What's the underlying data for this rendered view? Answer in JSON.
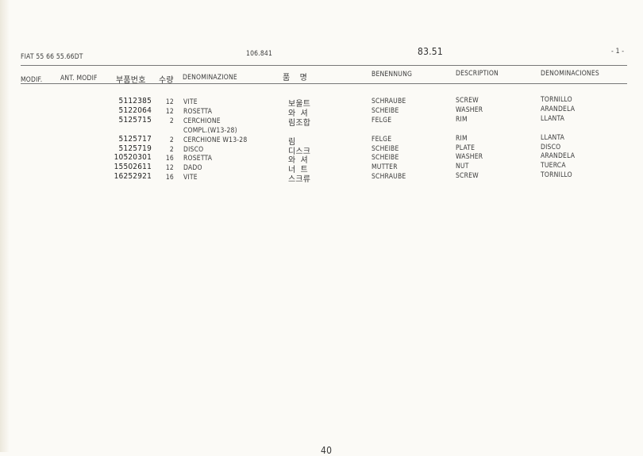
{
  "header": {
    "model": "FIAT 55 66 55.66DT",
    "ref": "106.841",
    "group": "83.51",
    "page": "- 1 -"
  },
  "columns": {
    "modif": "MODIF.",
    "ant_modif": "ANT. MODIF",
    "part_no": "부품번호",
    "qty": "수량",
    "denominazione": "DENOMINAZIONE",
    "korean": "품    명",
    "benennung": "BENENNUNG",
    "description": "DESCRIPTION",
    "denominaciones": "DENOMINACIONES"
  },
  "rows": [
    {
      "code": "5112385",
      "qty": "12",
      "it": "VITE",
      "ko": "보울트",
      "de": "SCHRAUBE",
      "en": "SCREW",
      "es": "TORNILLO"
    },
    {
      "code": "5122064",
      "qty": "12",
      "it": "ROSETTA",
      "ko": "와  셔",
      "de": "SCHEIBE",
      "en": "WASHER",
      "es": "ARANDELA"
    },
    {
      "code": "5125715",
      "qty": "2",
      "it": "CERCHIONE",
      "ko": "림조합",
      "de": "FELGE",
      "en": "RIM",
      "es": "LLANTA"
    },
    {
      "code": "",
      "qty": "",
      "it": "COMPL.(W13-28)",
      "ko": "",
      "de": "",
      "en": "",
      "es": ""
    },
    {
      "code": "5125717",
      "qty": "2",
      "it": "CERCHIONE W13-28",
      "ko": "림",
      "de": "FELGE",
      "en": "RIM",
      "es": "LLANTA"
    },
    {
      "code": "5125719",
      "qty": "2",
      "it": "DISCO",
      "ko": "디스크",
      "de": "SCHEIBE",
      "en": "PLATE",
      "es": "DISCO"
    },
    {
      "code": "10520301",
      "qty": "16",
      "it": "ROSETTA",
      "ko": "와  셔",
      "de": "SCHEIBE",
      "en": "WASHER",
      "es": "ARANDELA"
    },
    {
      "code": "15502611",
      "qty": "12",
      "it": "DADO",
      "ko": "너  트",
      "de": "MUTTER",
      "en": "NUT",
      "es": "TUERCA"
    },
    {
      "code": "16252921",
      "qty": "16",
      "it": "VITE",
      "ko": "스크류",
      "de": "SCHRAUBE",
      "en": "SCREW",
      "es": "TORNILLO"
    }
  ],
  "footer": {
    "page_mark": "40"
  }
}
